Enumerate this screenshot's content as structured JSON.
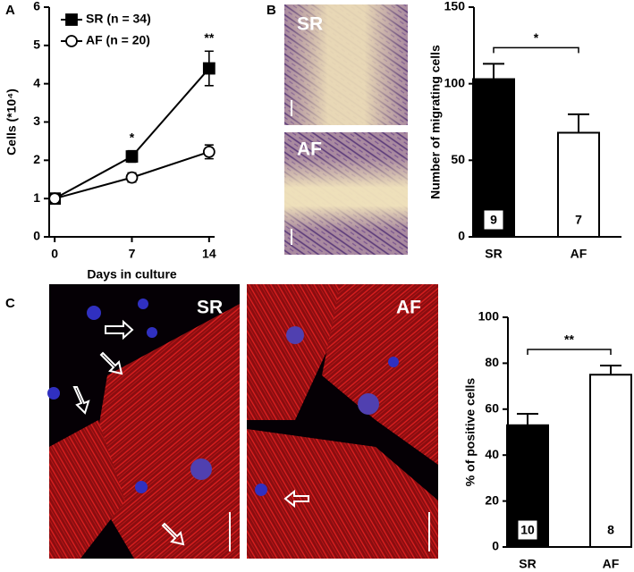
{
  "figure": {
    "panel_labels": [
      "A",
      "B",
      "C"
    ],
    "micrograph_labels": [
      "SR",
      "AF",
      "SR",
      "AF"
    ]
  },
  "chart_data": [
    {
      "type": "line",
      "ylabel": "Cells (*10⁴)",
      "xlabel": "Days in culture",
      "x": [
        0,
        7,
        14
      ],
      "xlim": [
        -0.5,
        14.5
      ],
      "xticks": [
        0,
        7,
        14
      ],
      "ylim": [
        0,
        6
      ],
      "yticks": [
        0,
        1,
        2,
        3,
        4,
        5,
        6
      ],
      "series": [
        {
          "name": "SR (n = 34)",
          "color": "#000000",
          "marker": "square",
          "values": [
            1,
            2.1,
            4.4
          ],
          "errors": [
            0.05,
            0.15,
            0.45
          ]
        },
        {
          "name": "AF (n = 20)",
          "color": "#ffffff",
          "marker": "circle",
          "values": [
            1,
            1.55,
            2.22
          ],
          "errors": [
            0.05,
            0.12,
            0.18
          ]
        }
      ],
      "annotations": [
        {
          "x": 7,
          "text": "*"
        },
        {
          "x": 14,
          "text": "**"
        }
      ]
    },
    {
      "type": "bar",
      "ylabel": "Number of migrating cells",
      "categories": [
        "SR",
        "AF"
      ],
      "values": [
        103,
        68
      ],
      "errors": [
        10,
        12
      ],
      "colors": [
        "#000000",
        "#ffffff"
      ],
      "n": [
        9,
        7
      ],
      "significance": "*",
      "ylim": [
        0,
        150
      ],
      "yticks": [
        0,
        50,
        100,
        150
      ]
    },
    {
      "type": "bar",
      "ylabel": "% of positive cells",
      "categories": [
        "SR",
        "AF"
      ],
      "values": [
        53,
        75
      ],
      "errors": [
        5,
        4
      ],
      "colors": [
        "#000000",
        "#ffffff"
      ],
      "n": [
        10,
        8
      ],
      "significance": "**",
      "ylim": [
        0,
        100
      ],
      "yticks": [
        0,
        20,
        40,
        60,
        80,
        100
      ]
    }
  ]
}
